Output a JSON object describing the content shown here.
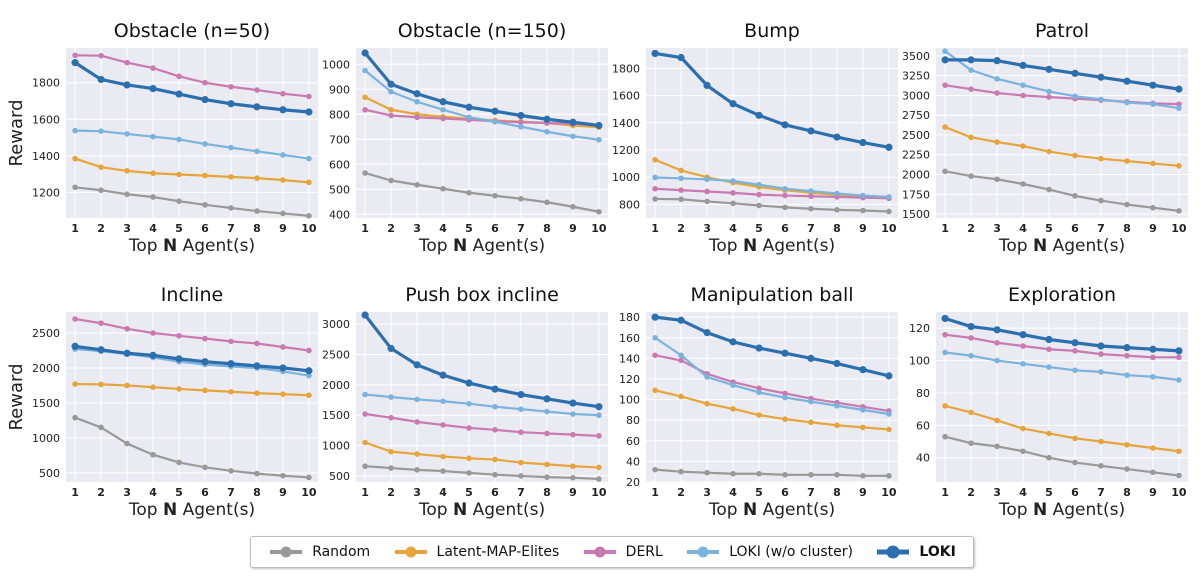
{
  "chart_data": [
    {
      "type": "line",
      "title": "Obstacle (n=50)",
      "ylabel": "Reward",
      "xlabel": "Top N Agent(s)",
      "x": [
        1,
        2,
        3,
        4,
        5,
        6,
        7,
        8,
        9,
        10
      ],
      "ylim": [
        1060,
        1990
      ],
      "yticks": [
        1200,
        1400,
        1600,
        1800
      ],
      "series": [
        {
          "name": "Random",
          "values": [
            1228,
            1212,
            1190,
            1175,
            1152,
            1132,
            1115,
            1098,
            1085,
            1072
          ]
        },
        {
          "name": "Latent-MAP-Elites",
          "values": [
            1385,
            1338,
            1318,
            1305,
            1298,
            1292,
            1285,
            1278,
            1268,
            1255
          ]
        },
        {
          "name": "DERL",
          "values": [
            1950,
            1948,
            1910,
            1880,
            1835,
            1800,
            1778,
            1760,
            1740,
            1725
          ]
        },
        {
          "name": "LOKI (w/o cluster)",
          "values": [
            1538,
            1535,
            1520,
            1505,
            1490,
            1465,
            1445,
            1425,
            1405,
            1385
          ]
        },
        {
          "name": "LOKI",
          "values": [
            1910,
            1818,
            1788,
            1768,
            1738,
            1708,
            1685,
            1668,
            1652,
            1640
          ]
        }
      ]
    },
    {
      "type": "line",
      "title": "Obstacle (n=150)",
      "ylabel": "",
      "xlabel": "Top N Agent(s)",
      "x": [
        1,
        2,
        3,
        4,
        5,
        6,
        7,
        8,
        9,
        10
      ],
      "ylim": [
        385,
        1065
      ],
      "yticks": [
        400,
        500,
        600,
        700,
        800,
        900,
        1000
      ],
      "series": [
        {
          "name": "Random",
          "values": [
            565,
            535,
            518,
            502,
            486,
            474,
            462,
            448,
            430,
            410
          ]
        },
        {
          "name": "Latent-MAP-Elites",
          "values": [
            868,
            818,
            800,
            790,
            782,
            775,
            770,
            765,
            755,
            748
          ]
        },
        {
          "name": "DERL",
          "values": [
            818,
            795,
            788,
            783,
            778,
            772,
            768,
            765,
            762,
            755
          ]
        },
        {
          "name": "LOKI (w/o cluster)",
          "values": [
            975,
            890,
            850,
            818,
            788,
            770,
            750,
            730,
            712,
            698
          ]
        },
        {
          "name": "LOKI",
          "values": [
            1045,
            920,
            882,
            850,
            828,
            812,
            795,
            780,
            768,
            755
          ]
        }
      ]
    },
    {
      "type": "line",
      "title": "Bump",
      "ylabel": "",
      "xlabel": "Top N Agent(s)",
      "x": [
        1,
        2,
        3,
        4,
        5,
        6,
        7,
        8,
        9,
        10
      ],
      "ylim": [
        700,
        1950
      ],
      "yticks": [
        800,
        1000,
        1200,
        1400,
        1600,
        1800
      ],
      "series": [
        {
          "name": "Random",
          "values": [
            840,
            838,
            822,
            808,
            792,
            778,
            768,
            760,
            755,
            748
          ]
        },
        {
          "name": "Latent-MAP-Elites",
          "values": [
            1128,
            1050,
            1000,
            960,
            928,
            905,
            885,
            870,
            858,
            850
          ]
        },
        {
          "name": "DERL",
          "values": [
            915,
            905,
            895,
            885,
            872,
            865,
            860,
            855,
            850,
            845
          ]
        },
        {
          "name": "LOKI (w/o cluster)",
          "values": [
            998,
            992,
            985,
            972,
            945,
            915,
            898,
            880,
            865,
            855
          ]
        },
        {
          "name": "LOKI",
          "values": [
            1910,
            1880,
            1675,
            1540,
            1455,
            1385,
            1340,
            1295,
            1255,
            1220
          ]
        }
      ]
    },
    {
      "type": "line",
      "title": "Patrol",
      "ylabel": "",
      "xlabel": "Top N Agent(s)",
      "x": [
        1,
        2,
        3,
        4,
        5,
        6,
        7,
        8,
        9,
        10
      ],
      "ylim": [
        1450,
        3600
      ],
      "yticks": [
        1500,
        1750,
        2000,
        2250,
        2500,
        2750,
        3000,
        3250,
        3500
      ],
      "series": [
        {
          "name": "Random",
          "values": [
            2040,
            1980,
            1940,
            1880,
            1810,
            1730,
            1670,
            1620,
            1580,
            1540
          ]
        },
        {
          "name": "Latent-MAP-Elites",
          "values": [
            2600,
            2470,
            2410,
            2360,
            2290,
            2240,
            2200,
            2170,
            2140,
            2110
          ]
        },
        {
          "name": "DERL",
          "values": [
            3130,
            3080,
            3030,
            3000,
            2980,
            2960,
            2940,
            2920,
            2900,
            2890
          ]
        },
        {
          "name": "LOKI (w/o cluster)",
          "values": [
            3560,
            3320,
            3210,
            3130,
            3050,
            2990,
            2950,
            2910,
            2890,
            2840
          ]
        },
        {
          "name": "LOKI",
          "values": [
            3450,
            3450,
            3440,
            3380,
            3330,
            3280,
            3230,
            3180,
            3130,
            3080
          ]
        }
      ]
    },
    {
      "type": "line",
      "title": "Incline",
      "ylabel": "Reward",
      "xlabel": "Top N Agent(s)",
      "x": [
        1,
        2,
        3,
        4,
        5,
        6,
        7,
        8,
        9,
        10
      ],
      "ylim": [
        370,
        2800
      ],
      "yticks": [
        500,
        1000,
        1500,
        2000,
        2500
      ],
      "series": [
        {
          "name": "Random",
          "values": [
            1290,
            1150,
            920,
            760,
            650,
            580,
            530,
            490,
            460,
            435
          ]
        },
        {
          "name": "Latent-MAP-Elites",
          "values": [
            1770,
            1765,
            1750,
            1725,
            1700,
            1680,
            1660,
            1640,
            1625,
            1610
          ]
        },
        {
          "name": "DERL",
          "values": [
            2700,
            2640,
            2560,
            2500,
            2460,
            2420,
            2380,
            2350,
            2300,
            2250
          ]
        },
        {
          "name": "LOKI (w/o cluster)",
          "values": [
            2270,
            2240,
            2200,
            2150,
            2090,
            2050,
            2020,
            2000,
            1950,
            1890
          ]
        },
        {
          "name": "LOKI",
          "values": [
            2310,
            2260,
            2210,
            2180,
            2130,
            2090,
            2060,
            2030,
            2000,
            1960
          ]
        }
      ]
    },
    {
      "type": "line",
      "title": "Push box incline",
      "ylabel": "",
      "xlabel": "Top N Agent(s)",
      "x": [
        1,
        2,
        3,
        4,
        5,
        6,
        7,
        8,
        9,
        10
      ],
      "ylim": [
        400,
        3200
      ],
      "yticks": [
        500,
        1000,
        1500,
        2000,
        2500,
        3000
      ],
      "series": [
        {
          "name": "Random",
          "values": [
            660,
            630,
            600,
            580,
            550,
            520,
            500,
            480,
            470,
            450
          ]
        },
        {
          "name": "Latent-MAP-Elites",
          "values": [
            1050,
            900,
            860,
            820,
            790,
            770,
            720,
            690,
            660,
            640
          ]
        },
        {
          "name": "DERL",
          "values": [
            1520,
            1460,
            1390,
            1340,
            1290,
            1260,
            1220,
            1200,
            1180,
            1160
          ]
        },
        {
          "name": "LOKI (w/o cluster)",
          "values": [
            1840,
            1800,
            1760,
            1730,
            1690,
            1640,
            1600,
            1560,
            1520,
            1500
          ]
        },
        {
          "name": "LOKI",
          "values": [
            3150,
            2600,
            2330,
            2160,
            2030,
            1930,
            1840,
            1770,
            1700,
            1640
          ]
        }
      ]
    },
    {
      "type": "line",
      "title": "Manipulation ball",
      "ylabel": "",
      "xlabel": "Top N Agent(s)",
      "x": [
        1,
        2,
        3,
        4,
        5,
        6,
        7,
        8,
        9,
        10
      ],
      "ylim": [
        20,
        185
      ],
      "yticks": [
        20,
        40,
        60,
        80,
        100,
        120,
        140,
        160,
        180
      ],
      "series": [
        {
          "name": "Random",
          "values": [
            32,
            30,
            29,
            28,
            28,
            27,
            27,
            27,
            26,
            26
          ]
        },
        {
          "name": "Latent-MAP-Elites",
          "values": [
            109,
            103,
            96,
            91,
            85,
            81,
            78,
            75,
            73,
            71
          ]
        },
        {
          "name": "DERL",
          "values": [
            143,
            138,
            125,
            117,
            111,
            106,
            101,
            97,
            93,
            89
          ]
        },
        {
          "name": "LOKI (w/o cluster)",
          "values": [
            160,
            143,
            122,
            114,
            107,
            102,
            98,
            94,
            90,
            86
          ]
        },
        {
          "name": "LOKI",
          "values": [
            180,
            177,
            165,
            156,
            150,
            145,
            140,
            135,
            129,
            123
          ]
        }
      ]
    },
    {
      "type": "line",
      "title": "Exploration",
      "ylabel": "",
      "xlabel": "Top N Agent(s)",
      "x": [
        1,
        2,
        3,
        4,
        5,
        6,
        7,
        8,
        9,
        10
      ],
      "ylim": [
        25,
        130
      ],
      "yticks": [
        40,
        60,
        80,
        100,
        120
      ],
      "series": [
        {
          "name": "Random",
          "values": [
            53,
            49,
            47,
            44,
            40,
            37,
            35,
            33,
            31,
            29
          ]
        },
        {
          "name": "Latent-MAP-Elites",
          "values": [
            72,
            68,
            63,
            58,
            55,
            52,
            50,
            48,
            46,
            44
          ]
        },
        {
          "name": "DERL",
          "values": [
            116,
            114,
            111,
            109,
            107,
            106,
            104,
            103,
            102,
            102
          ]
        },
        {
          "name": "LOKI (w/o cluster)",
          "values": [
            105,
            103,
            100,
            98,
            96,
            94,
            93,
            91,
            90,
            88
          ]
        },
        {
          "name": "LOKI",
          "values": [
            126,
            121,
            119,
            116,
            113,
            111,
            109,
            108,
            107,
            106
          ]
        }
      ]
    }
  ],
  "series_style": [
    {
      "name": "Random",
      "color": "#999999"
    },
    {
      "name": "Latent-MAP-Elites",
      "color": "#e5a53a"
    },
    {
      "name": "DERL",
      "color": "#c97ab0"
    },
    {
      "name": "LOKI (w/o cluster)",
      "color": "#7ab3dd"
    },
    {
      "name": "LOKI",
      "color": "#2c6faf"
    }
  ],
  "xlabel_parts": {
    "pre": "Top ",
    "bold": "N",
    "post": " Agent(s)"
  },
  "legend": {
    "random": "Random",
    "latent": "Latent-MAP-Elites",
    "derl": "DERL",
    "loki_wo": "LOKI (w/o cluster)",
    "loki": "LOKI"
  },
  "colors": {
    "panel_bg": "#eaeaf2",
    "grid": "#ffffff"
  }
}
